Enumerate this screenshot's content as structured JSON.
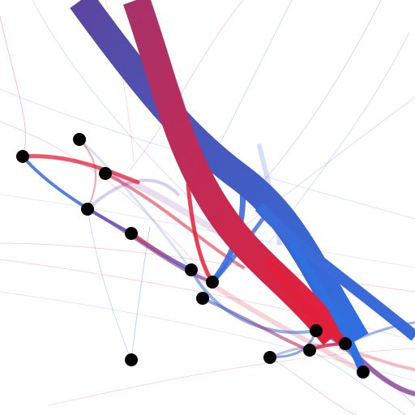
{
  "colors": {
    "background": "#ffffff",
    "red": "#dc1e3c",
    "crimson": "#c8284e",
    "blue": "#3266dc",
    "violet": "#5a46a0",
    "node": "#000000"
  },
  "nodes": [
    {
      "id": "n1"
    },
    {
      "id": "n2"
    },
    {
      "id": "n3"
    },
    {
      "id": "n4"
    },
    {
      "id": "n5"
    },
    {
      "id": "n6"
    },
    {
      "id": "n7"
    },
    {
      "id": "n8"
    },
    {
      "id": "n9"
    },
    {
      "id": "n10"
    },
    {
      "id": "n11"
    },
    {
      "id": "n12"
    },
    {
      "id": "n13"
    },
    {
      "id": "n14"
    }
  ],
  "flows": [
    {
      "id": "main-violet-band",
      "from": "violet",
      "to": "blue"
    },
    {
      "id": "main-crimson-band",
      "from": "crimson",
      "to": "red"
    }
  ]
}
